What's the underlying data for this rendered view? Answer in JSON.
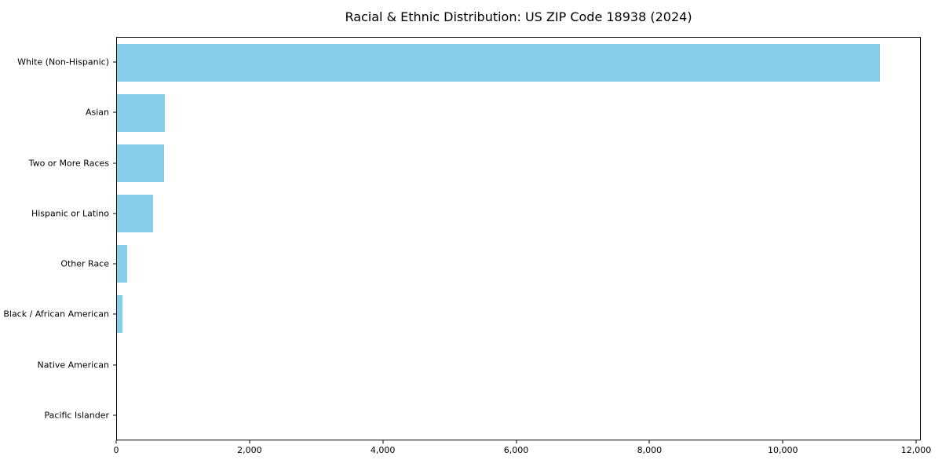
{
  "background_color": "#ffffff",
  "chart_data": {
    "type": "bar",
    "orientation": "horizontal",
    "title": "Racial & Ethnic Distribution: US ZIP Code 18938 (2024)",
    "xlabel": "",
    "ylabel": "",
    "grid": false,
    "legend": null,
    "bar_color": "#87CEEB",
    "axis_color": "#000000",
    "categories": [
      "White (Non-Hispanic)",
      "Asian",
      "Two or More Races",
      "Hispanic or Latino",
      "Other Race",
      "Black / African American",
      "Native American",
      "Pacific Islander"
    ],
    "values": [
      11470,
      720,
      705,
      540,
      150,
      82,
      0,
      0
    ],
    "xlim": [
      0,
      12070
    ],
    "x_ticks": [
      {
        "value": 0,
        "label": "0"
      },
      {
        "value": 2000,
        "label": "2,000"
      },
      {
        "value": 4000,
        "label": "4,000"
      },
      {
        "value": 6000,
        "label": "6,000"
      },
      {
        "value": 8000,
        "label": "8,000"
      },
      {
        "value": 10000,
        "label": "10,000"
      },
      {
        "value": 12000,
        "label": "12,000"
      }
    ]
  }
}
